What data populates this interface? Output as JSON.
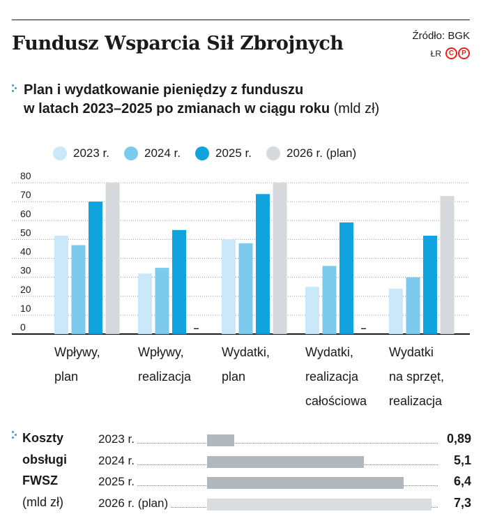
{
  "header": {
    "title": "Fundusz Wsparcia Sił Zbrojnych",
    "source": "Źródło: BGK",
    "author": "ŁR",
    "badge_c": "C",
    "badge_p": "P"
  },
  "subtitle": {
    "line1": "Plan i wydatkowanie pieniędzy z funduszu",
    "line2": "w latach 2023–2025 po zmianach w ciągu roku",
    "unit": "(mld zł)"
  },
  "colors": {
    "s2023": "#c9e9fa",
    "s2024": "#7ccbef",
    "s2025": "#10a3de",
    "s2026": "#d7dadd",
    "cost_bar": "#b1b8bd",
    "cost_bar_plan": "#dadddf"
  },
  "chart_data": {
    "type": "bar",
    "categories": [
      [
        "Wpływy,",
        "plan"
      ],
      [
        "Wpływy,",
        "realizacja"
      ],
      [
        "Wydatki,",
        "plan"
      ],
      [
        "Wydatki,",
        "realizacja",
        "całościowa"
      ],
      [
        "Wydatki",
        "na sprzęt,",
        "realizacja"
      ]
    ],
    "series": [
      {
        "name": "2023 r.",
        "values": [
          52,
          32,
          50,
          25,
          24
        ]
      },
      {
        "name": "2024 r.",
        "values": [
          47,
          35,
          48,
          36,
          30
        ]
      },
      {
        "name": "2025 r.",
        "values": [
          70,
          55,
          74,
          59,
          52
        ]
      },
      {
        "name": "2026 r. (plan)",
        "values": [
          80,
          null,
          80,
          null,
          73
        ]
      }
    ],
    "missing_marker": "–",
    "yticks": [
      0,
      10,
      20,
      30,
      40,
      50,
      60,
      70,
      80
    ],
    "ylim": [
      0,
      80
    ],
    "grid": "dotted horizontal",
    "legend": "top"
  },
  "costs": {
    "label_lines": [
      "Koszty",
      "obsługi",
      "FWSZ",
      "(mld zł)"
    ],
    "rows": [
      {
        "year": "2023 r.",
        "value": "0,89",
        "amount": 0.89,
        "plan": false
      },
      {
        "year": "2024 r.",
        "value": "5,1",
        "amount": 5.1,
        "plan": false
      },
      {
        "year": "2025 r.",
        "value": "6,4",
        "amount": 6.4,
        "plan": false
      },
      {
        "year": "2026 r. (plan)",
        "value": "7,3",
        "amount": 7.3,
        "plan": true
      }
    ]
  }
}
